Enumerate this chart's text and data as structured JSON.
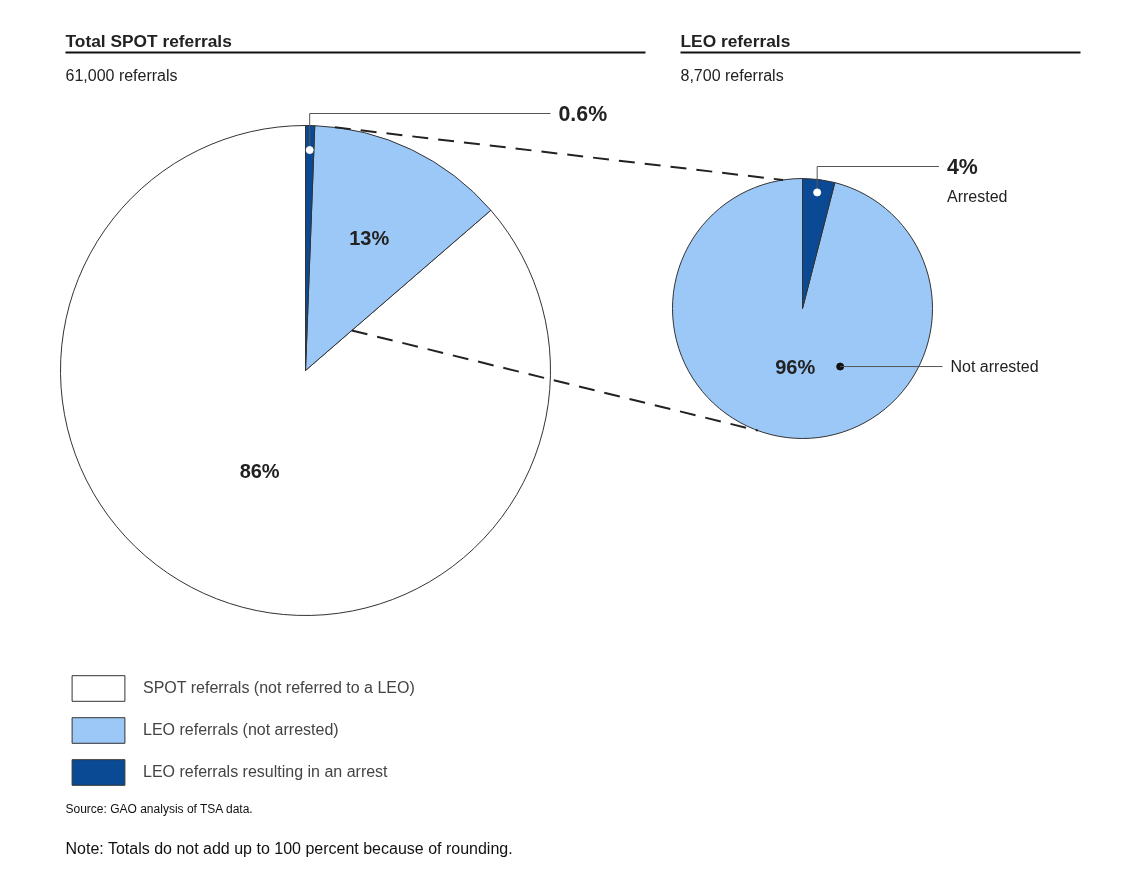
{
  "chart_data": [
    {
      "type": "pie",
      "title": "Total SPOT referrals",
      "subtitle": "61,000 referrals",
      "categories": [
        "SPOT referrals (not referred to a LEO)",
        "LEO referrals (not arrested)",
        "LEO referrals resulting in an arrest"
      ],
      "values": [
        86,
        13,
        0.6
      ],
      "colors": [
        "#ffffff",
        "#9cc8f7",
        "#0a4a94"
      ],
      "data_labels": true,
      "value_labels": [
        "86%",
        "13%",
        "0.6%"
      ],
      "legend": "bottom",
      "annotations": [
        "Source: GAO analysis of TSA data.",
        "Note: Totals do not add up to 100 percent because of rounding."
      ]
    },
    {
      "type": "pie",
      "title": "LEO referrals",
      "subtitle": "8,700 referrals",
      "categories": [
        "Not arrested",
        "Arrested"
      ],
      "values": [
        96,
        4
      ],
      "colors": [
        "#9cc8f7",
        "#0a4a94"
      ],
      "data_labels": true,
      "value_labels": [
        "96%",
        "4%"
      ]
    }
  ]
}
